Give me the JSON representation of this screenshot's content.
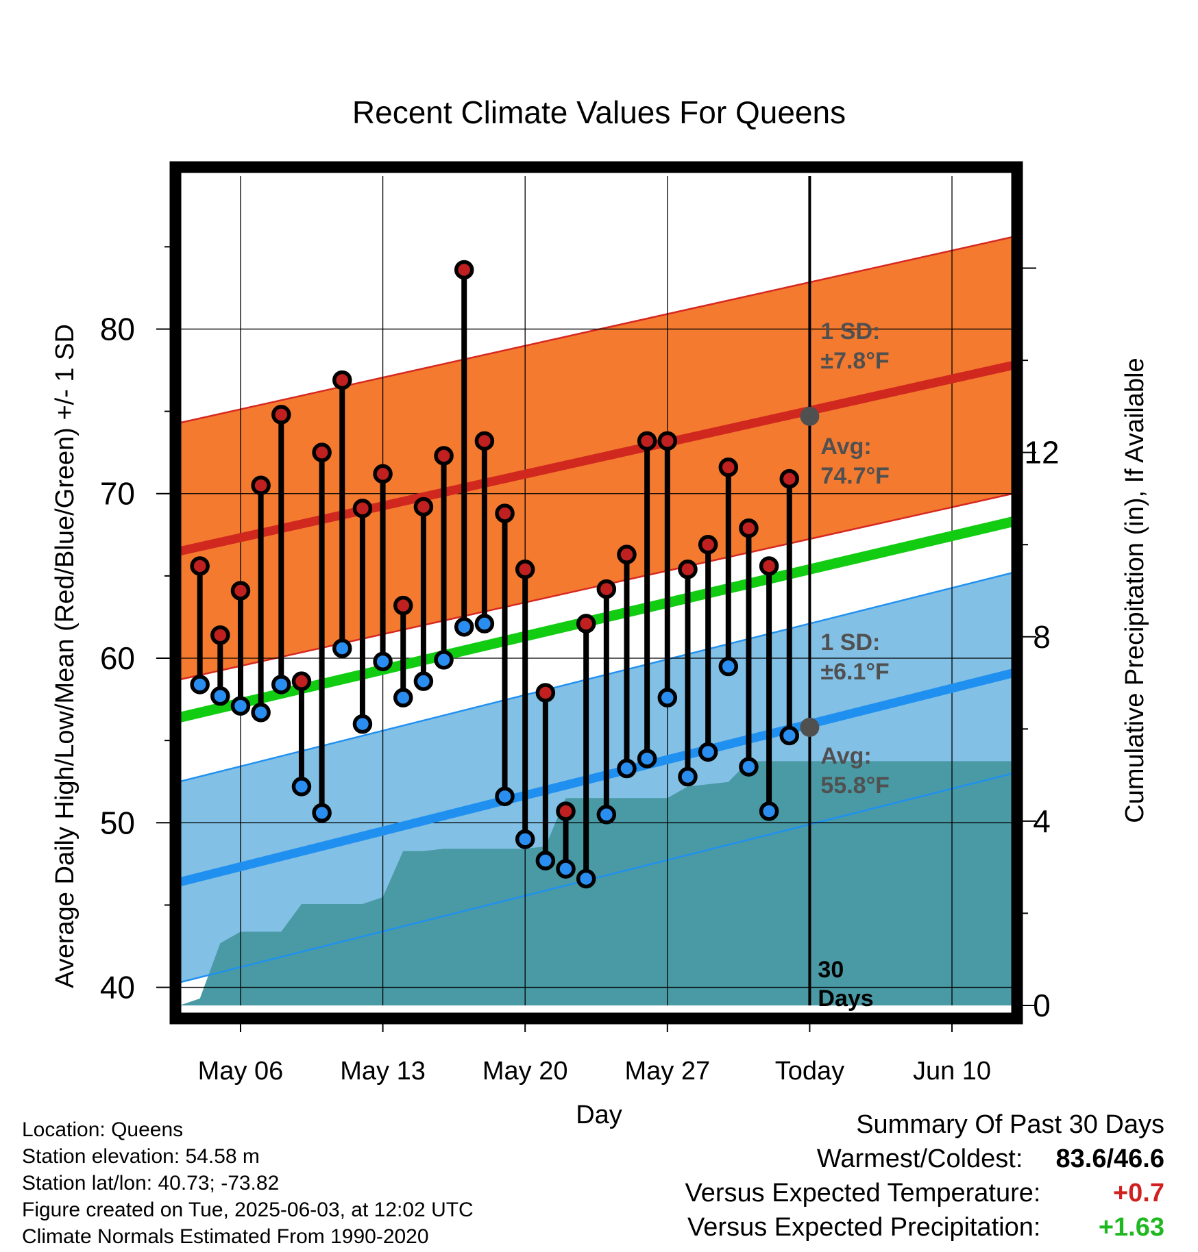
{
  "chart_data": {
    "type": "line",
    "title": "Recent Climate Values For Queens",
    "xlabel": "Day",
    "ylabel_left": "Average Daily High/Low/Mean (Red/Blue/Green) +/- 1 SD",
    "ylabel_right": "Cumulative Precipitation (in), If Available",
    "ylim_left": [
      38.9,
      89.3
    ],
    "ylim_right": [
      0,
      18.0
    ],
    "xlim": [
      "May 03",
      "Jun 13"
    ],
    "x_ticks": [
      {
        "date": "May 06",
        "label": "May 06"
      },
      {
        "date": "May 13",
        "label": "May 13"
      },
      {
        "date": "May 20",
        "label": "May 20"
      },
      {
        "date": "May 27",
        "label": "May 27"
      },
      {
        "date": "Jun 03",
        "label": "Today"
      },
      {
        "date": "Jun 10",
        "label": "Jun 10"
      }
    ],
    "y_ticks_left": [
      "40",
      "50",
      "60",
      "70",
      "80"
    ],
    "y_ticks_right": [
      "0",
      "4",
      "8",
      "12"
    ],
    "today_marker_label": "30\nDays",
    "dates": [
      "May 04",
      "May 05",
      "May 06",
      "May 07",
      "May 08",
      "May 09",
      "May 10",
      "May 11",
      "May 12",
      "May 13",
      "May 14",
      "May 15",
      "May 16",
      "May 17",
      "May 18",
      "May 19",
      "May 20",
      "May 21",
      "May 22",
      "May 23",
      "May 24",
      "May 25",
      "May 26",
      "May 27",
      "May 28",
      "May 29",
      "May 30",
      "May 31",
      "Jun 01",
      "Jun 02"
    ],
    "highs": [
      65.6,
      61.4,
      64.1,
      70.5,
      74.8,
      58.6,
      72.5,
      76.9,
      69.1,
      71.2,
      63.2,
      69.2,
      72.3,
      83.6,
      73.2,
      68.8,
      65.4,
      57.9,
      50.7,
      62.1,
      64.2,
      66.3,
      73.2,
      73.2,
      65.4,
      66.9,
      71.6,
      67.9,
      65.6,
      70.9
    ],
    "lows": [
      58.4,
      57.7,
      57.1,
      56.7,
      58.4,
      52.2,
      50.6,
      60.6,
      56.0,
      59.8,
      57.6,
      58.6,
      59.9,
      61.9,
      62.1,
      51.6,
      49.0,
      47.7,
      47.2,
      46.6,
      50.5,
      53.3,
      53.9,
      57.6,
      52.8,
      54.3,
      59.5,
      53.4,
      50.7,
      55.3
    ],
    "normal_high": {
      "start": 66.5,
      "end": 77.8,
      "today": 74.7,
      "sd": 7.8
    },
    "normal_low": {
      "start": 46.4,
      "end": 59.1,
      "today": 55.8,
      "sd": 6.1
    },
    "normal_mean": {
      "start": 56.4,
      "end": 68.3
    },
    "normal_high_label": "Avg:\n74.7°F",
    "normal_high_sd_label": "1 SD:\n±7.8°F",
    "normal_low_label": "Avg:\n55.8°F",
    "normal_low_sd_label": "1 SD:\n±6.1°F",
    "precip_cumulative": [
      {
        "date": "May 03",
        "value": 0.0
      },
      {
        "date": "May 04",
        "value": 0.15
      },
      {
        "date": "May 05",
        "value": 1.35
      },
      {
        "date": "May 06",
        "value": 1.6
      },
      {
        "date": "May 07",
        "value": 1.6
      },
      {
        "date": "May 08",
        "value": 1.6
      },
      {
        "date": "May 09",
        "value": 2.2
      },
      {
        "date": "May 10",
        "value": 2.2
      },
      {
        "date": "May 11",
        "value": 2.2
      },
      {
        "date": "May 12",
        "value": 2.2
      },
      {
        "date": "May 13",
        "value": 2.35
      },
      {
        "date": "May 14",
        "value": 3.35
      },
      {
        "date": "May 15",
        "value": 3.35
      },
      {
        "date": "May 16",
        "value": 3.4
      },
      {
        "date": "May 17",
        "value": 3.4
      },
      {
        "date": "May 18",
        "value": 3.4
      },
      {
        "date": "May 19",
        "value": 3.4
      },
      {
        "date": "May 20",
        "value": 3.4
      },
      {
        "date": "May 21",
        "value": 3.45
      },
      {
        "date": "May 22",
        "value": 4.5
      },
      {
        "date": "May 23",
        "value": 4.5
      },
      {
        "date": "May 24",
        "value": 4.5
      },
      {
        "date": "May 25",
        "value": 4.5
      },
      {
        "date": "May 26",
        "value": 4.5
      },
      {
        "date": "May 27",
        "value": 4.5
      },
      {
        "date": "May 28",
        "value": 4.75
      },
      {
        "date": "May 29",
        "value": 4.8
      },
      {
        "date": "May 30",
        "value": 4.85
      },
      {
        "date": "May 31",
        "value": 5.3
      },
      {
        "date": "Jun 01",
        "value": 5.3
      },
      {
        "date": "Jun 02",
        "value": 5.3
      },
      {
        "date": "Jun 03",
        "value": 5.3
      },
      {
        "date": "Jun 13",
        "value": 5.3
      }
    ],
    "colors": {
      "high_band": "#f47a30",
      "high_line": "#d0281e",
      "high_edge": "#d62820",
      "low_band": "#82c0e6",
      "low_line": "#2090f0",
      "low_edge": "#2090f0",
      "mean_line": "#12cc12",
      "precip": "#499aa4",
      "high_marker": "#c02020",
      "low_marker": "#2a8ef0",
      "annotation": "#505050"
    }
  },
  "footer_left": [
    "Location: Queens",
    "Station elevation: 54.58 m",
    "Station lat/lon: 40.73; -73.82",
    "Figure created on Tue, 2025-06-03, at 12:02 UTC",
    "Climate Normals Estimated From 1990-2020"
  ],
  "summary": {
    "title": "Summary Of Past 30 Days",
    "warmest_coldest_label": "Warmest/Coldest:",
    "warmest": "83.6",
    "coldest": "46.6",
    "temp_label": "Versus Expected Temperature:",
    "temp_value": "+0.7",
    "precip_label": "Versus Expected Precipitation:",
    "precip_value": "+1.63",
    "temp_color": "#d02020",
    "precip_color": "#20b820"
  }
}
